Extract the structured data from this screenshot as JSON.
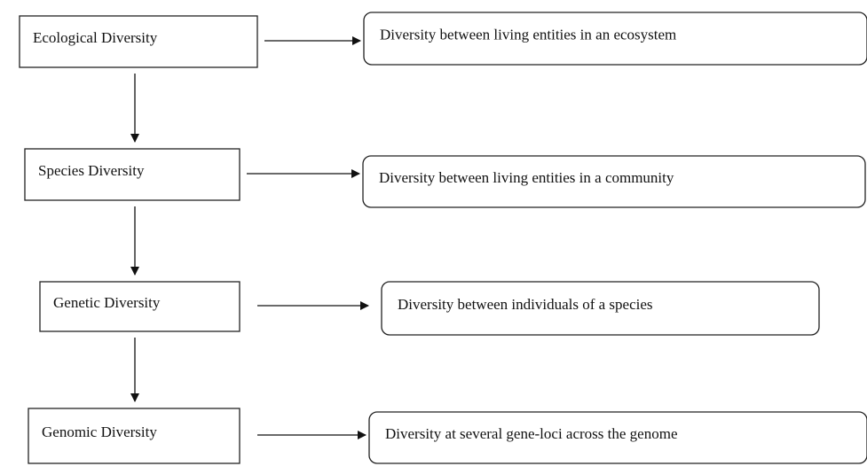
{
  "nodes": [
    {
      "label": "Ecological Diversity",
      "description": "Diversity between living entities in an ecosystem"
    },
    {
      "label": "Species Diversity",
      "description": "Diversity between living entities in a community"
    },
    {
      "label": "Genetic Diversity",
      "description": "Diversity between individuals of a species"
    },
    {
      "label": "Genomic Diversity",
      "description": "Diversity at several gene-loci across the genome"
    }
  ]
}
